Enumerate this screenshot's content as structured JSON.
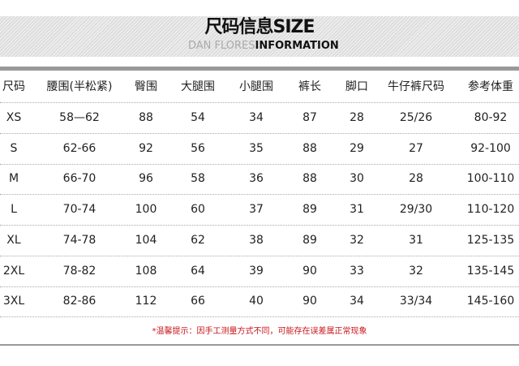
{
  "banner": {
    "title": "尺码信息SIZE",
    "sub_light": "DAN FLORES",
    "sub_bold": "INFORMATION"
  },
  "table": {
    "headers": [
      "尺码",
      "腰围(半松紧)",
      "臀围",
      "大腿围",
      "小腿围",
      "裤长",
      "脚口",
      "牛仔裤尺码",
      "参考体重"
    ],
    "rows": [
      [
        "XS",
        "58—62",
        "88",
        "54",
        "34",
        "87",
        "28",
        "25/26",
        "80-92"
      ],
      [
        "S",
        "62-66",
        "92",
        "56",
        "35",
        "88",
        "29",
        "27",
        "92-100"
      ],
      [
        "M",
        "66-70",
        "96",
        "58",
        "36",
        "88",
        "30",
        "28",
        "100-110"
      ],
      [
        "L",
        "70-74",
        "100",
        "60",
        "37",
        "89",
        "31",
        "29/30",
        "110-120"
      ],
      [
        "XL",
        "74-78",
        "104",
        "62",
        "38",
        "89",
        "32",
        "31",
        "125-135"
      ],
      [
        "2XL",
        "78-82",
        "108",
        "64",
        "39",
        "90",
        "33",
        "32",
        "135-145"
      ],
      [
        "3XL",
        "82-86",
        "112",
        "66",
        "40",
        "90",
        "34",
        "33/34",
        "145-160"
      ]
    ]
  },
  "note": "*温馨提示：因手工测量方式不同，可能存在误差属正常现象",
  "colors": {
    "note": "#c8161d",
    "rule": "#999999"
  }
}
